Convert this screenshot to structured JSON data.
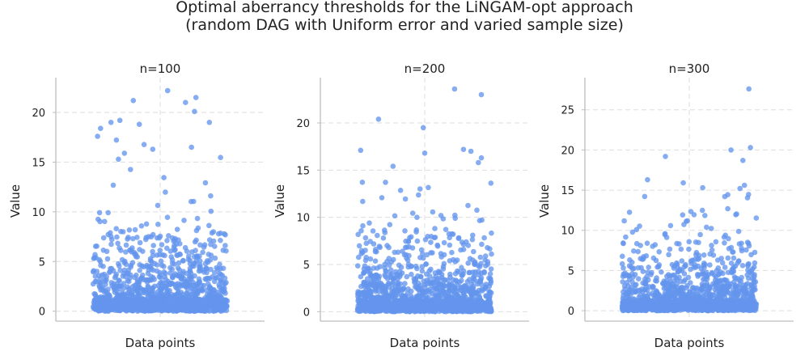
{
  "chart_data": {
    "type": "scatter",
    "title_line1": "Optimal aberrancy thresholds for the LiNGAM-opt approach",
    "title_line2": "(random DAG with Uniform error and varied sample size)",
    "color": "#6495ED",
    "grid": true,
    "panels": [
      {
        "title": "n=100",
        "xlabel": "Data points",
        "ylabel": "Value",
        "ylim": [
          -1.0,
          23.5
        ],
        "yticks": [
          0,
          5,
          10,
          15,
          20
        ],
        "tick_labels": [
          "0",
          "5",
          "10",
          "15",
          "20"
        ],
        "x_range": [
          -0.45,
          0.45
        ],
        "highlights": [
          [
            0.05,
            22.2
          ],
          [
            -0.18,
            21.2
          ],
          [
            0.24,
            21.5
          ],
          [
            0.17,
            21.0
          ],
          [
            -0.4,
            18.4
          ],
          [
            -0.33,
            19.0
          ],
          [
            -0.27,
            19.2
          ],
          [
            -0.14,
            18.8
          ],
          [
            0.33,
            19.0
          ],
          [
            -0.42,
            17.6
          ],
          [
            0.23,
            20.1
          ],
          [
            0.21,
            16.5
          ],
          [
            -0.05,
            16.3
          ],
          [
            -0.24,
            15.9
          ]
        ],
        "n_points": 1500,
        "mode_value": 0.3,
        "upper_clip": 17.5,
        "seed": 101
      },
      {
        "title": "n=200",
        "xlabel": "Data points",
        "ylabel": "Value",
        "ylim": [
          -1.0,
          24.8
        ],
        "yticks": [
          0,
          5,
          10,
          15,
          20
        ],
        "tick_labels": [
          "0",
          "5",
          "10",
          "15",
          "20"
        ],
        "x_range": [
          -0.45,
          0.45
        ],
        "highlights": [
          [
            0.2,
            23.6
          ],
          [
            0.38,
            23.0
          ],
          [
            -0.31,
            20.4
          ],
          [
            -0.01,
            19.5
          ],
          [
            -0.43,
            17.1
          ],
          [
            0.0,
            16.8
          ],
          [
            0.31,
            17.0
          ],
          [
            0.26,
            17.2
          ],
          [
            0.38,
            16.3
          ],
          [
            0.36,
            15.8
          ]
        ],
        "n_points": 1500,
        "mode_value": 0.3,
        "upper_clip": 15.5,
        "seed": 202
      },
      {
        "title": "n=300",
        "xlabel": "Data points",
        "ylabel": "Value",
        "ylim": [
          -1.3,
          29.0
        ],
        "yticks": [
          0,
          5,
          10,
          15,
          20,
          25
        ],
        "tick_labels": [
          "0",
          "5",
          "10",
          "15",
          "20",
          "25"
        ],
        "x_range": [
          -0.45,
          0.45
        ],
        "highlights": [
          [
            0.4,
            27.6
          ],
          [
            0.41,
            20.3
          ],
          [
            0.28,
            20.0
          ],
          [
            -0.16,
            19.2
          ],
          [
            0.36,
            18.7
          ],
          [
            -0.28,
            16.3
          ],
          [
            -0.04,
            15.9
          ],
          [
            0.37,
            15.6
          ],
          [
            0.34,
            15.2
          ],
          [
            0.09,
            15.3
          ]
        ],
        "n_points": 1500,
        "mode_value": 0.3,
        "upper_clip": 15.0,
        "seed": 303
      }
    ]
  }
}
